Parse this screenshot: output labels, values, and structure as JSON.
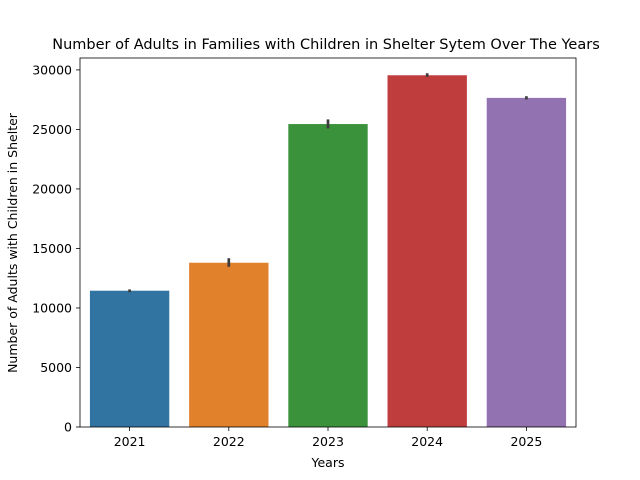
{
  "chart_data": {
    "type": "bar",
    "title": "Number of Adults in Families with Children in Shelter Sytem Over The Years",
    "xlabel": "Years",
    "ylabel": "Number of Adults with Children in Shelter",
    "categories": [
      "2021",
      "2022",
      "2023",
      "2024",
      "2025"
    ],
    "values": [
      11450,
      13800,
      25450,
      29550,
      27650
    ],
    "error_low": [
      11320,
      13460,
      25080,
      29420,
      27520
    ],
    "error_high": [
      11560,
      14180,
      25840,
      29720,
      27790
    ],
    "colors": [
      "#3274a1",
      "#e1812c",
      "#3a923a",
      "#c03d3e",
      "#9372b2"
    ],
    "error_color": "#3d3d3d",
    "yticks": [
      0,
      5000,
      10000,
      15000,
      20000,
      25000,
      30000
    ],
    "ylim": [
      0,
      31000
    ],
    "grid": false,
    "legend": "none"
  }
}
